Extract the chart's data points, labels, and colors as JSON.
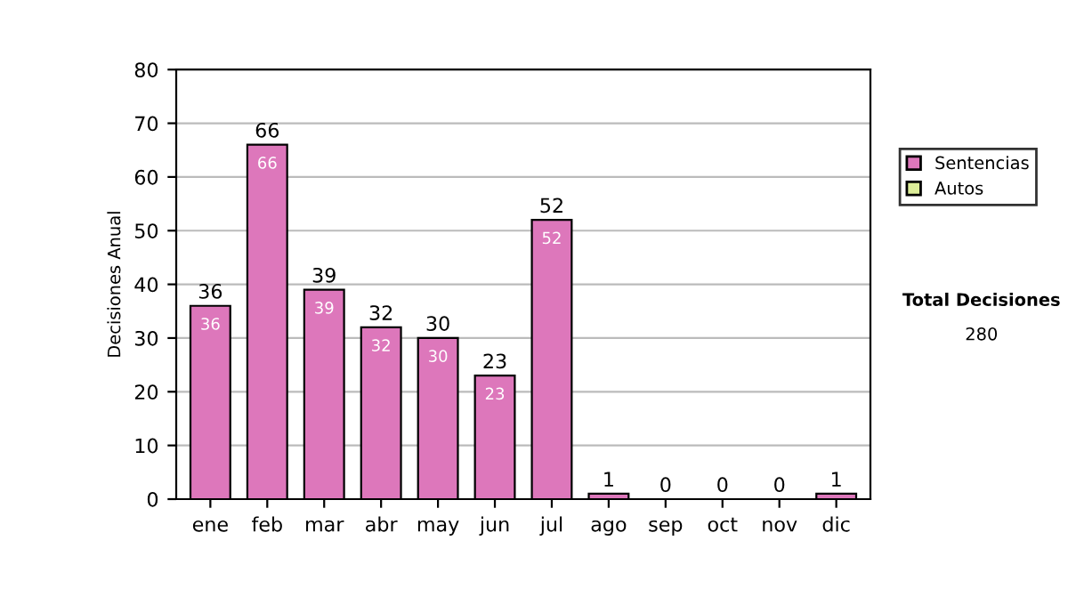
{
  "chart_data": {
    "type": "bar",
    "stacked": true,
    "ylabel": "Decisiones Anual",
    "categories": [
      "ene",
      "feb",
      "mar",
      "abr",
      "may",
      "jun",
      "jul",
      "ago",
      "sep",
      "oct",
      "nov",
      "dic"
    ],
    "series": [
      {
        "name": "Sentencias",
        "color": "#dd77bb",
        "values": [
          36,
          66,
          39,
          32,
          30,
          23,
          52,
          1,
          0,
          0,
          0,
          1
        ],
        "value_labels": [
          "36",
          "66",
          "39",
          "32",
          "30",
          "23",
          "52",
          null,
          null,
          null,
          null,
          null
        ]
      },
      {
        "name": "Autos",
        "color": "#ddee99",
        "values": [
          0,
          0,
          0,
          0,
          0,
          0,
          0,
          0,
          0,
          0,
          0,
          0
        ]
      }
    ],
    "totals": [
      "36",
      "66",
      "39",
      "32",
      "30",
      "23",
      "52",
      "1",
      "0",
      "0",
      "0",
      "1"
    ],
    "ylim": [
      0,
      80
    ],
    "yticks": [
      0,
      10,
      20,
      30,
      40,
      50,
      60,
      70,
      80
    ],
    "grid": "y",
    "legend": "right",
    "annotations": [
      "Total Decisiones",
      "280"
    ]
  }
}
